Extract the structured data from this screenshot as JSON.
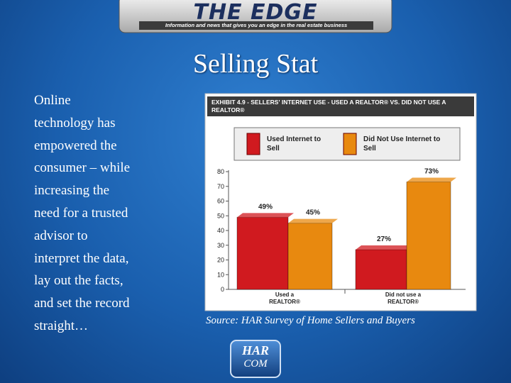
{
  "header": {
    "title": "THE EDGE",
    "tagline": "Information and news that gives you an edge in the real estate business"
  },
  "title": "Selling Stat",
  "body": {
    "lines": [
      "Online",
      "technology has",
      "empowered the",
      "consumer – while",
      "increasing the",
      "need for a trusted",
      "advisor to",
      "interpret the data,",
      "lay out the facts,",
      "and set the record",
      "straight…"
    ]
  },
  "chart_data": {
    "type": "bar",
    "title": "EXHIBIT 4.9 - SELLERS' INTERNET USE - USED A REALTOR® VS. DID NOT USE A REALTOR®",
    "categories": [
      "Used a REALTOR®",
      "Did not use a REALTOR®"
    ],
    "series": [
      {
        "name": "Used Internet to Sell",
        "color": "#d01a1f",
        "values": [
          49,
          27
        ],
        "value_labels": [
          "49%",
          "27%"
        ]
      },
      {
        "name": "Did Not Use Internet to Sell",
        "color": "#e8890f",
        "values": [
          45,
          73
        ],
        "value_labels": [
          "45%",
          "73%"
        ]
      }
    ],
    "ylim": [
      0,
      80
    ],
    "yticks": [
      0,
      10,
      20,
      30,
      40,
      50,
      60,
      70,
      80
    ]
  },
  "source": "Source: HAR Survey of Home Sellers and Buyers",
  "logo": {
    "top": "HAR",
    "bottom": "COM"
  }
}
